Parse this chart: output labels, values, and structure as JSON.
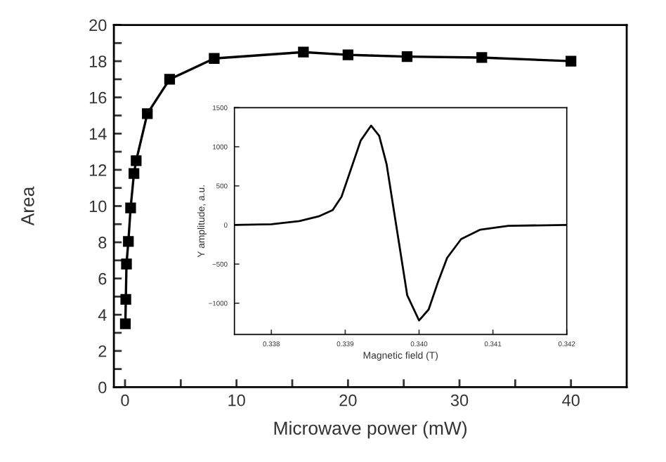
{
  "chart_data": [
    {
      "type": "line",
      "xlabel": "Microwave power (mW)",
      "ylabel": "Area",
      "marker": "square",
      "line_style": "solid",
      "grid": false,
      "legend": false,
      "x": [
        0.03,
        0.07,
        0.13,
        0.3,
        0.5,
        0.8,
        1.0,
        2.0,
        4.0,
        8.0,
        16.0,
        20.0,
        25.3,
        32.0,
        40.0
      ],
      "series": [
        {
          "color": "#000000",
          "values": [
            3.5,
            4.85,
            6.8,
            8.05,
            9.9,
            11.8,
            12.5,
            15.1,
            17.0,
            18.15,
            18.5,
            18.35,
            18.25,
            18.2,
            18.0
          ]
        }
      ],
      "xlim": [
        -1,
        45
      ],
      "xticks": [
        0,
        {
          "value": 5,
          "label": null
        },
        10,
        {
          "value": 15,
          "label": null
        },
        20,
        {
          "value": 25,
          "label": null
        },
        30,
        {
          "value": 35,
          "label": null
        },
        40
      ],
      "ylim": [
        0,
        20
      ],
      "yticks": [
        0,
        {
          "value": 1,
          "label": null
        },
        2,
        {
          "value": 3,
          "label": null
        },
        4,
        {
          "value": 5,
          "label": null
        },
        6,
        {
          "value": 7,
          "label": null
        },
        8,
        {
          "value": 9,
          "label": null
        },
        10,
        {
          "value": 11,
          "label": null
        },
        12,
        {
          "value": 13,
          "label": null
        },
        14,
        {
          "value": 15,
          "label": null
        },
        16,
        {
          "value": 17,
          "label": null
        },
        18,
        {
          "value": 19,
          "label": null
        },
        20
      ]
    },
    {
      "type": "line",
      "xlabel": "Magnetic field (T)",
      "ylabel": "Y amplitude, a.u.",
      "marker": "none",
      "line_style": "solid",
      "grid": false,
      "legend": false,
      "x": [
        0.3375,
        0.338,
        0.33838,
        0.33864,
        0.33883,
        0.33895,
        0.33908,
        0.33921,
        0.33935,
        0.33946,
        0.33956,
        0.33965,
        0.33975,
        0.33984,
        0.34,
        0.34013,
        0.34026,
        0.34038,
        0.34057,
        0.34083,
        0.34121,
        0.342
      ],
      "series": [
        {
          "color": "#000000",
          "values": [
            0,
            10,
            50,
            110,
            190,
            360,
            720,
            1080,
            1270,
            1140,
            780,
            240,
            -360,
            -900,
            -1220,
            -1080,
            -720,
            -420,
            -180,
            -60,
            -10,
            0
          ]
        }
      ],
      "xlim": [
        0.3375,
        0.342
      ],
      "xticks": [
        {
          "value": 0.338,
          "label": "0.338"
        },
        {
          "value": 0.339,
          "label": "0.339"
        },
        {
          "value": 0.34,
          "label": "0.340"
        },
        {
          "value": 0.341,
          "label": "0.341"
        },
        {
          "value": 0.342,
          "label": "0.342"
        }
      ],
      "ylim": [
        -1400,
        1500
      ],
      "yticks": [
        {
          "value": -1000,
          "label": "−1000"
        },
        {
          "value": -500,
          "label": "−500"
        },
        0,
        500,
        1000,
        1500
      ]
    }
  ]
}
